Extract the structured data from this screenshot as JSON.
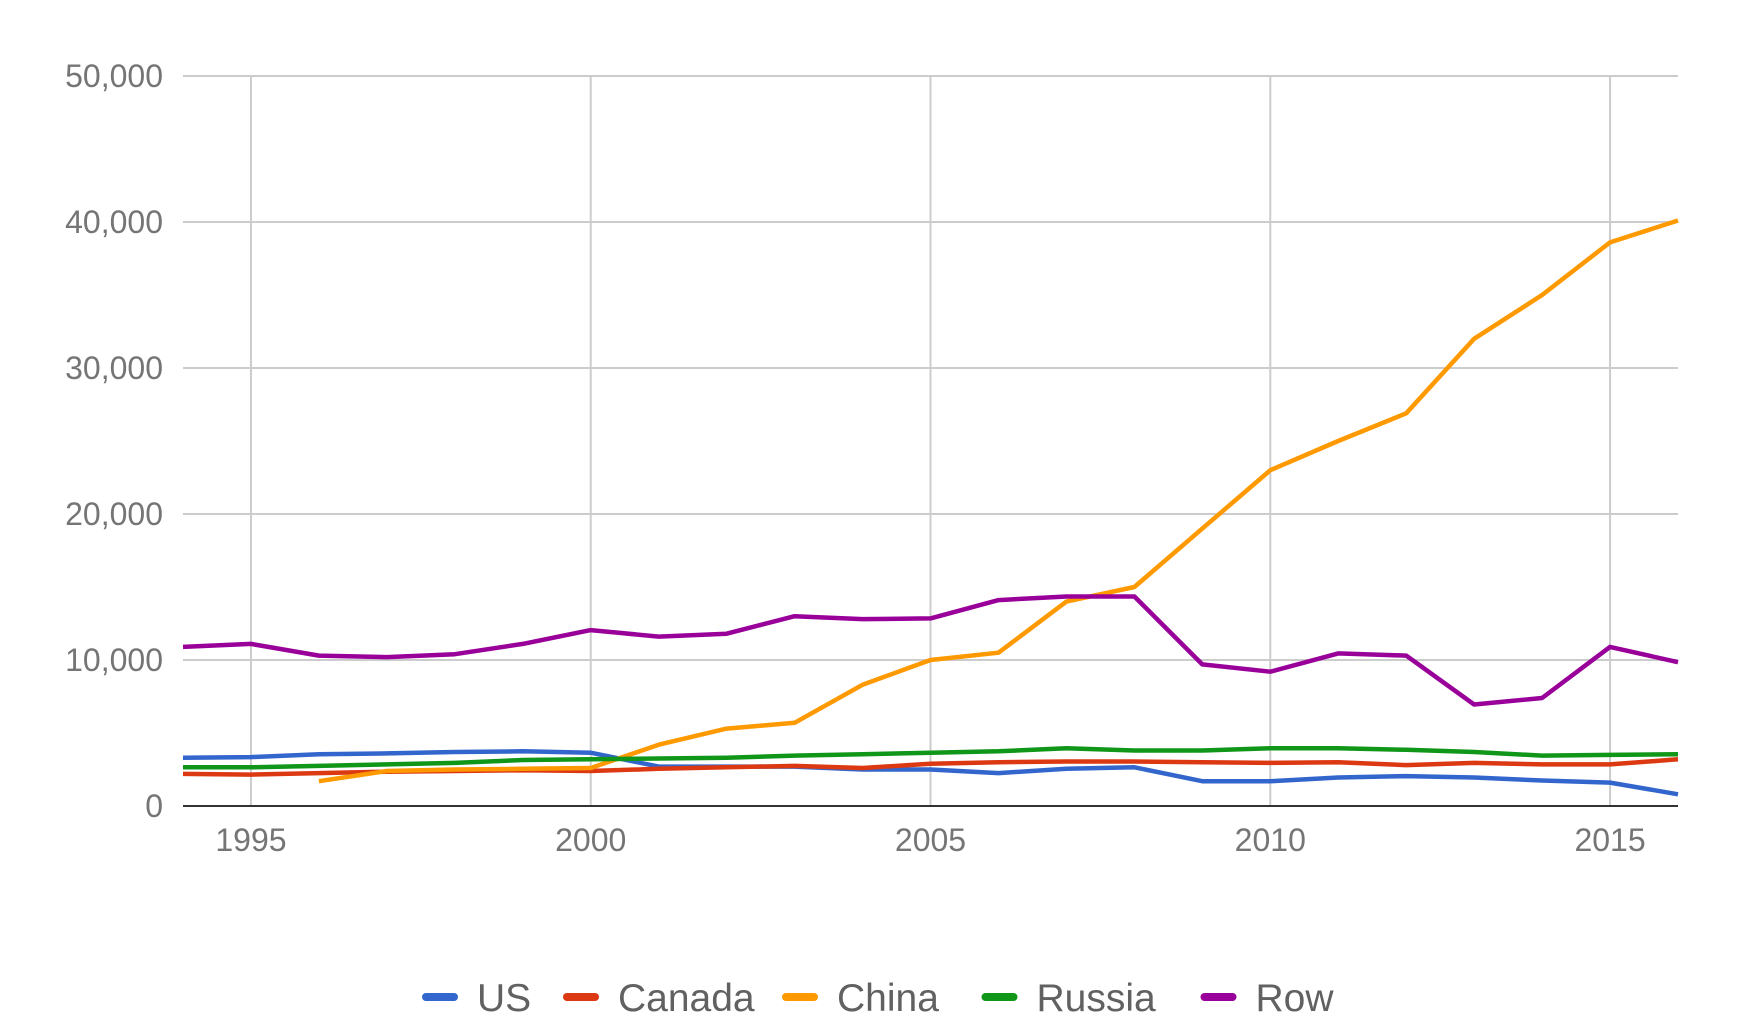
{
  "chart_data": {
    "type": "line",
    "title": "",
    "xlabel": "",
    "ylabel": "",
    "xlim": [
      1994,
      2016
    ],
    "ylim": [
      0,
      50000
    ],
    "x_ticks": [
      1995,
      2000,
      2005,
      2010,
      2015
    ],
    "x_tick_labels": [
      "1995",
      "2000",
      "2005",
      "2010",
      "2015"
    ],
    "y_ticks": [
      0,
      10000,
      20000,
      30000,
      40000,
      50000
    ],
    "y_tick_labels": [
      "0",
      "10,000",
      "20,000",
      "30,000",
      "40,000",
      "50,000"
    ],
    "grid": true,
    "legend_position": "bottom",
    "x": [
      1994,
      1995,
      1996,
      1997,
      1998,
      1999,
      2000,
      2001,
      2002,
      2003,
      2004,
      2005,
      2006,
      2007,
      2008,
      2009,
      2010,
      2011,
      2012,
      2013,
      2014,
      2015,
      2016
    ],
    "series": [
      {
        "name": "US",
        "color": "#3366cc",
        "values": [
          3300,
          3350,
          3550,
          3600,
          3700,
          3750,
          3650,
          2700,
          2700,
          2700,
          2500,
          2500,
          2250,
          2550,
          2650,
          1700,
          1700,
          1950,
          2050,
          1950,
          1750,
          1600,
          800
        ]
      },
      {
        "name": "Canada",
        "color": "#dc3912",
        "values": [
          2200,
          2150,
          2250,
          2350,
          2400,
          2450,
          2400,
          2550,
          2650,
          2750,
          2600,
          2900,
          3000,
          3050,
          3050,
          3000,
          2950,
          3000,
          2800,
          2950,
          2850,
          2850,
          3200
        ]
      },
      {
        "name": "China",
        "color": "#ff9900",
        "values": [
          null,
          null,
          1700,
          2400,
          2500,
          2550,
          2600,
          4200,
          5300,
          5700,
          8300,
          10000,
          10500,
          14000,
          15000,
          19000,
          23000,
          25000,
          26900,
          32000,
          35000,
          38600,
          40100
        ]
      },
      {
        "name": "Russia",
        "color": "#109618",
        "values": [
          2650,
          2650,
          2750,
          2850,
          2950,
          3150,
          3200,
          3250,
          3300,
          3450,
          3550,
          3650,
          3750,
          3950,
          3800,
          3800,
          3950,
          3950,
          3850,
          3700,
          3450,
          3500,
          3550
        ]
      },
      {
        "name": "Row",
        "color": "#990099",
        "values": [
          10900,
          11100,
          10300,
          10200,
          10400,
          11100,
          12050,
          11600,
          11800,
          13000,
          12800,
          12850,
          14100,
          14350,
          14350,
          9700,
          9200,
          10450,
          10300,
          6950,
          7400,
          10900,
          9850
        ]
      }
    ]
  }
}
